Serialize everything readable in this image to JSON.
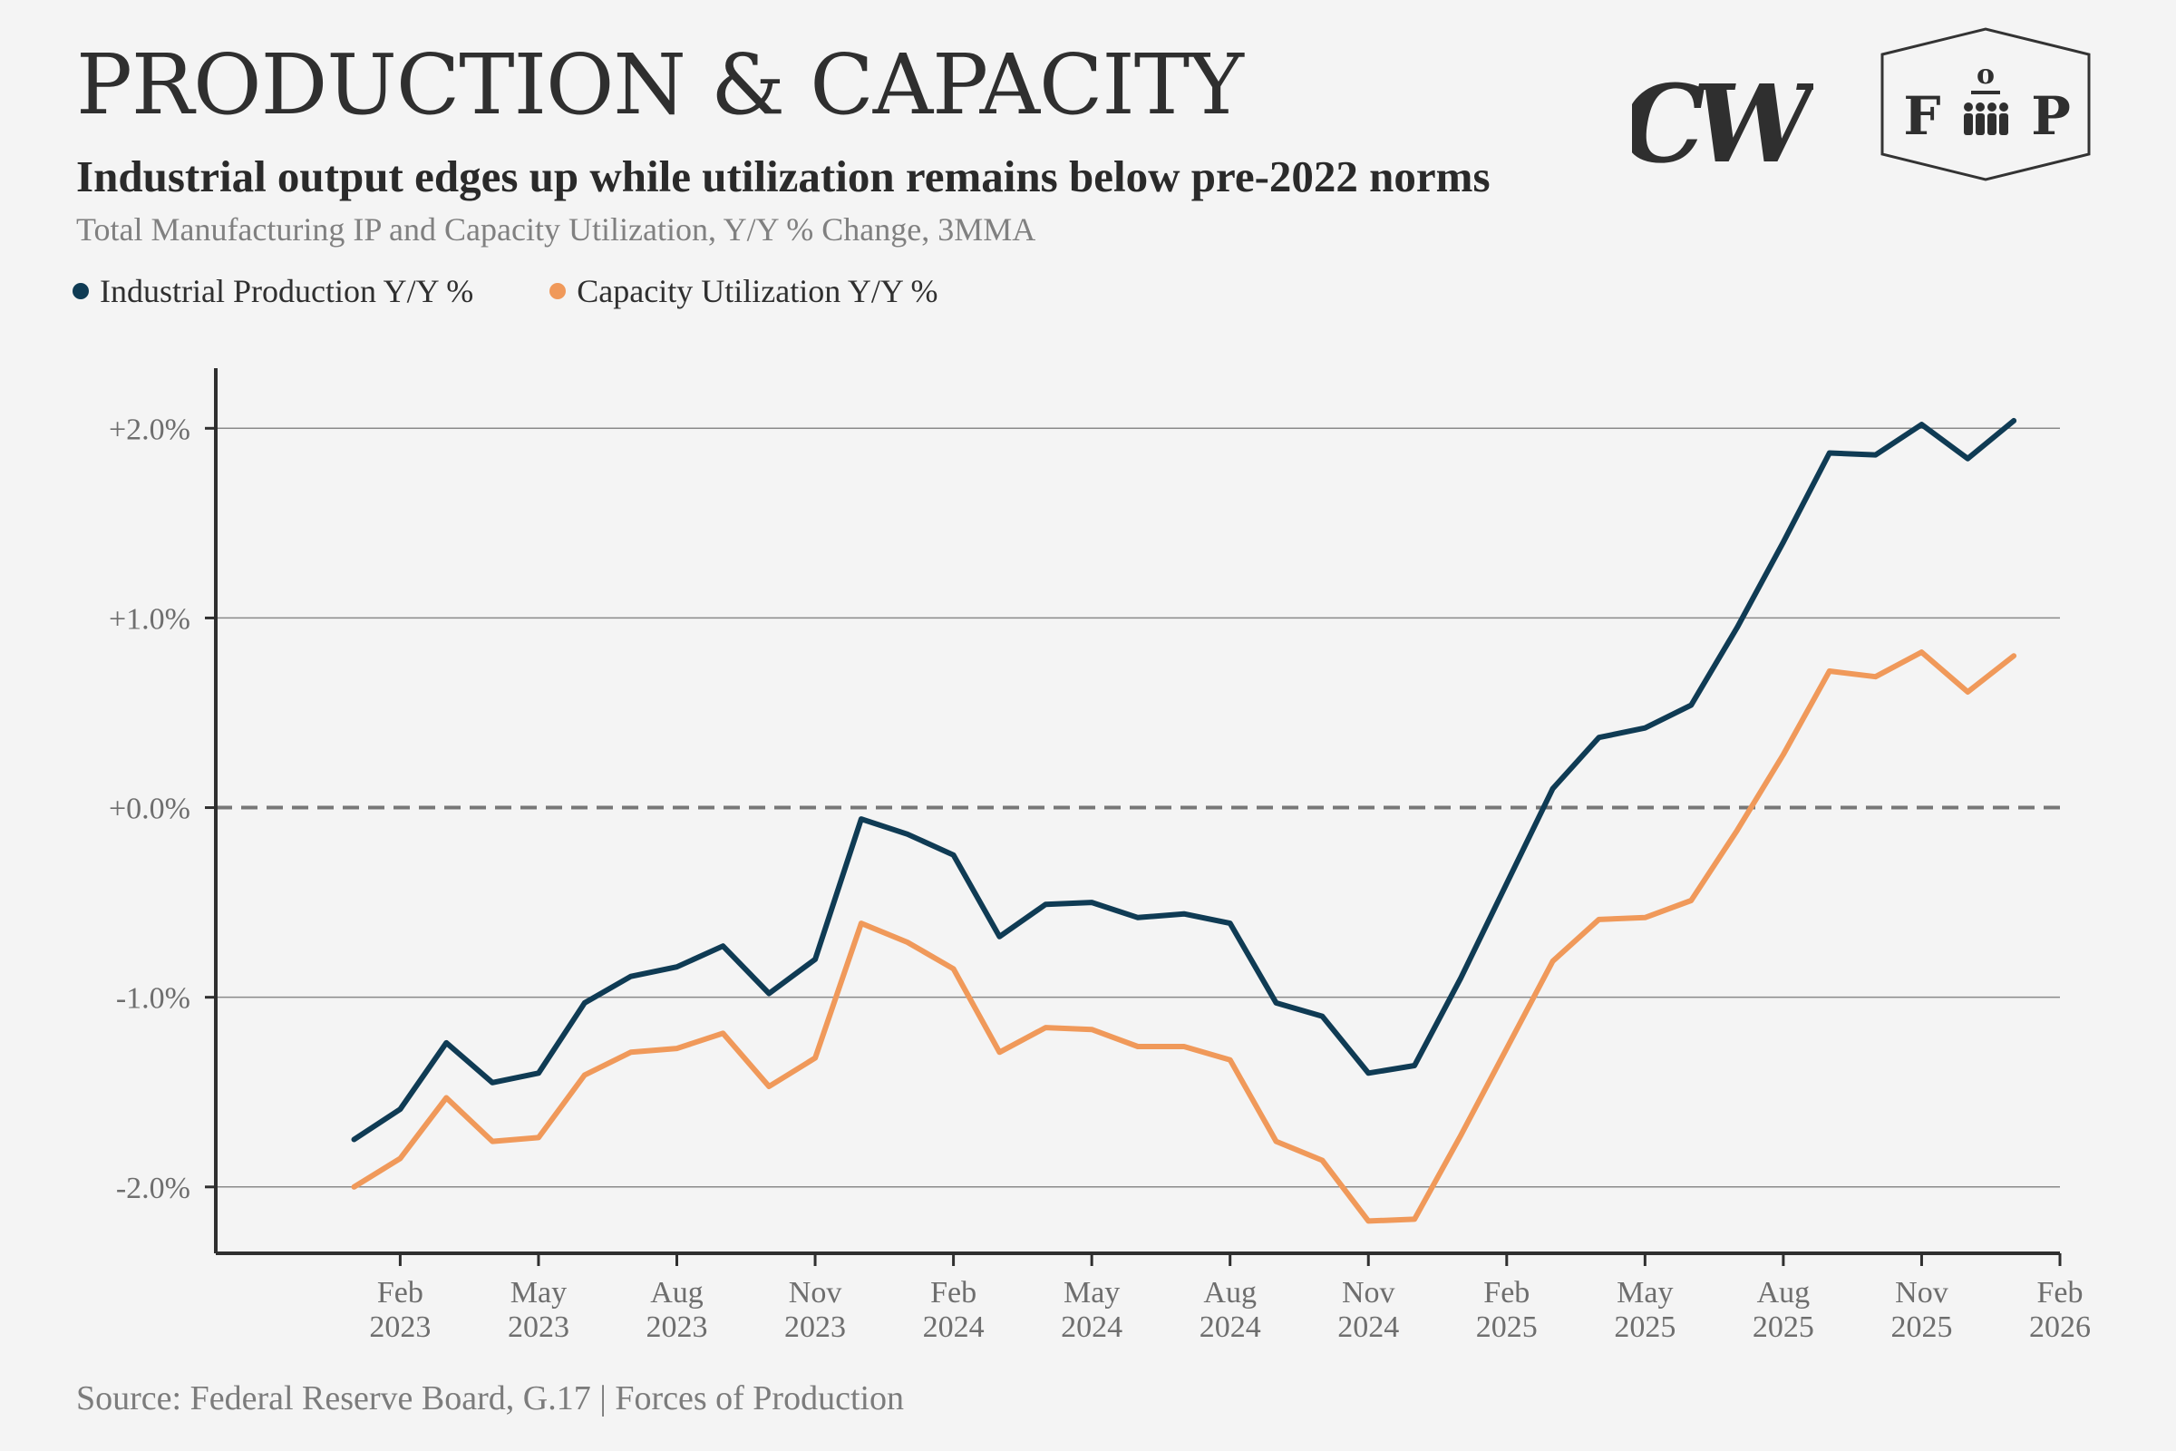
{
  "header": {
    "title": "PRODUCTION & CAPACITY",
    "subtitle": "Industrial output edges up while utilization remains below pre-2022 norms",
    "note": "Total Manufacturing IP and Capacity Utilization, Y/Y % Change, 3MMA"
  },
  "logos": {
    "cw_text": "CW",
    "fop_left": "F",
    "fop_top": "o",
    "fop_right": "P"
  },
  "legend": [
    {
      "label": "Industrial Production Y/Y %",
      "color": "#0f3b54"
    },
    {
      "label": "Capacity Utilization Y/Y %",
      "color": "#f0995a"
    }
  ],
  "source": "Source: Federal Reserve Board, G.17 | Forces of Production",
  "chart_data": {
    "type": "line",
    "x_start": "2023-01",
    "x": [
      "2023-01",
      "2023-02",
      "2023-03",
      "2023-04",
      "2023-05",
      "2023-06",
      "2023-07",
      "2023-08",
      "2023-09",
      "2023-10",
      "2023-11",
      "2023-12",
      "2024-01",
      "2024-02",
      "2024-03",
      "2024-04",
      "2024-05",
      "2024-06",
      "2024-07",
      "2024-08",
      "2024-09",
      "2024-10",
      "2024-11",
      "2024-12",
      "2025-01",
      "2025-02",
      "2025-03",
      "2025-04",
      "2025-05",
      "2025-06",
      "2025-07",
      "2025-08",
      "2025-09",
      "2025-10",
      "2025-11",
      "2025-12",
      "2026-01"
    ],
    "series": [
      {
        "name": "Industrial Production Y/Y %",
        "color": "#0f3b54",
        "values": [
          -1.75,
          -1.59,
          -1.24,
          -1.45,
          -1.4,
          -1.03,
          -0.89,
          -0.84,
          -0.73,
          -0.98,
          -0.8,
          -0.06,
          -0.14,
          -0.25,
          -0.68,
          -0.51,
          -0.5,
          -0.58,
          -0.56,
          -0.61,
          -1.03,
          -1.1,
          -1.4,
          -1.36,
          -0.9,
          -0.4,
          0.1,
          0.37,
          0.42,
          0.54,
          0.95,
          1.4,
          1.87,
          1.86,
          2.02,
          1.84,
          2.04
        ]
      },
      {
        "name": "Capacity Utilization Y/Y %",
        "color": "#f0995a",
        "values": [
          -2.0,
          -1.85,
          -1.53,
          -1.76,
          -1.74,
          -1.41,
          -1.29,
          -1.27,
          -1.19,
          -1.47,
          -1.32,
          -0.61,
          -0.71,
          -0.85,
          -1.29,
          -1.16,
          -1.17,
          -1.26,
          -1.26,
          -1.33,
          -1.76,
          -1.86,
          -2.18,
          -2.17,
          -1.73,
          -1.27,
          -0.81,
          -0.59,
          -0.58,
          -0.49,
          -0.12,
          0.28,
          0.72,
          0.69,
          0.82,
          0.61,
          0.8
        ]
      }
    ],
    "y_ticks": [
      "+2.0%",
      "+1.0%",
      "+0.0%",
      "-1.0%",
      "-2.0%"
    ],
    "y_tick_values": [
      2,
      1,
      0,
      -1,
      -2
    ],
    "ylim": [
      -2.35,
      2.25
    ],
    "x_tick_labels": [
      [
        "Feb",
        "2023"
      ],
      [
        "May",
        "2023"
      ],
      [
        "Aug",
        "2023"
      ],
      [
        "Nov",
        "2023"
      ],
      [
        "Feb",
        "2024"
      ],
      [
        "May",
        "2024"
      ],
      [
        "Aug",
        "2024"
      ],
      [
        "Nov",
        "2024"
      ],
      [
        "Feb",
        "2025"
      ],
      [
        "May",
        "2025"
      ],
      [
        "Aug",
        "2025"
      ],
      [
        "Nov",
        "2025"
      ],
      [
        "Feb",
        "2026"
      ]
    ],
    "x_tick_dates": [
      "2023-02",
      "2023-05",
      "2023-08",
      "2023-11",
      "2024-02",
      "2024-05",
      "2024-08",
      "2024-11",
      "2025-02",
      "2025-05",
      "2025-08",
      "2025-11",
      "2026-02"
    ],
    "xlim": [
      "2022-10",
      "2026-02"
    ],
    "zero_line": "dashed",
    "grid": "horizontal",
    "legend_position": "top-left"
  }
}
